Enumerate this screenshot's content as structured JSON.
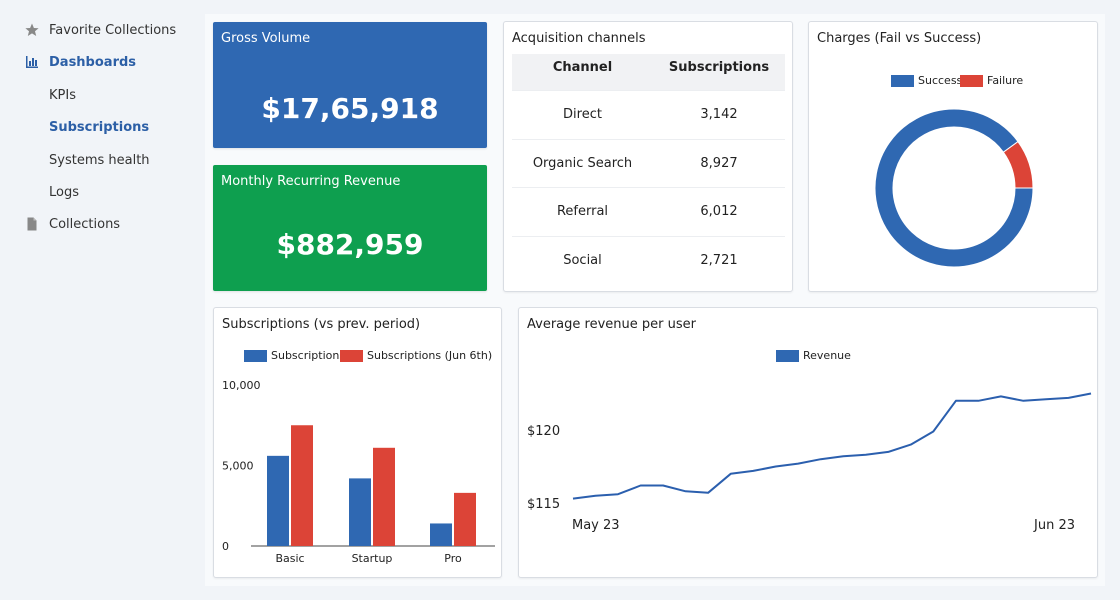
{
  "sidebar": {
    "items": [
      {
        "label": "Favorite Collections",
        "icon": "star-icon"
      },
      {
        "label": "Dashboards",
        "icon": "bar-chart-icon"
      },
      {
        "label": "KPIs"
      },
      {
        "label": "Subscriptions"
      },
      {
        "label": "Systems health"
      },
      {
        "label": "Logs"
      },
      {
        "label": "Collections",
        "icon": "document-icon"
      }
    ]
  },
  "kpis": {
    "gross_volume": {
      "title": "Gross Volume",
      "value": "$17,65,918",
      "color": "#2f68b2"
    },
    "mrr": {
      "title": "Monthly Recurring Revenue",
      "value": "$882,959",
      "color": "#0e9f4f"
    }
  },
  "acquisition": {
    "title": "Acquisition channels",
    "columns": [
      "Channel",
      "Subscriptions"
    ],
    "rows": [
      {
        "channel": "Direct",
        "subs": "3,142"
      },
      {
        "channel": "Organic Search",
        "subs": "8,927"
      },
      {
        "channel": "Referral",
        "subs": "6,012"
      },
      {
        "channel": "Social",
        "subs": "2,721"
      }
    ]
  },
  "charges": {
    "title": "Charges (Fail vs Success)",
    "legend": [
      "Success",
      "Failure"
    ]
  },
  "subscriptions_chart": {
    "title": "Subscriptions (vs prev. period)",
    "legend": [
      "Subscriptions",
      "Subscriptions (Jun 6th)"
    ],
    "y_ticks": [
      "10,000",
      "5,000",
      "0"
    ]
  },
  "arpu": {
    "title": "Average revenue per user",
    "legend": [
      "Revenue"
    ],
    "y_ticks": [
      "$120",
      "$115"
    ],
    "x_ticks": [
      "May 23",
      "Jun 23"
    ]
  },
  "colors": {
    "blue": "#2f68b2",
    "red": "#dc4437",
    "green": "#0e9f4f",
    "accent": "#2c5fa6"
  },
  "chart_data": [
    {
      "type": "pie",
      "title": "Charges (Fail vs Success)",
      "labels": [
        "Success",
        "Failure"
      ],
      "values": [
        90,
        10
      ],
      "legend": "top"
    },
    {
      "type": "bar",
      "title": "Subscriptions (vs prev. period)",
      "categories": [
        "Basic",
        "Startup",
        "Pro"
      ],
      "series": [
        {
          "name": "Subscriptions",
          "values": [
            5600,
            4200,
            1400
          ]
        },
        {
          "name": "Subscriptions (Jun 6th)",
          "values": [
            7500,
            6100,
            3300
          ]
        }
      ],
      "ylim": [
        0,
        10000
      ],
      "legend": "top"
    },
    {
      "type": "line",
      "title": "Average revenue per user",
      "series": [
        {
          "name": "Revenue",
          "values": [
            115.3,
            115.5,
            115.6,
            116.2,
            116.2,
            115.8,
            115.7,
            117.0,
            117.2,
            117.5,
            117.7,
            118.0,
            118.2,
            118.3,
            118.5,
            119.0,
            119.9,
            122.0,
            122.0,
            122.3,
            122.0,
            122.1,
            122.2,
            122.5
          ]
        }
      ],
      "x_ticks": [
        "May 23",
        "Jun 23"
      ],
      "y_ticks": [
        "$120",
        "$115"
      ],
      "legend": "top"
    }
  ]
}
